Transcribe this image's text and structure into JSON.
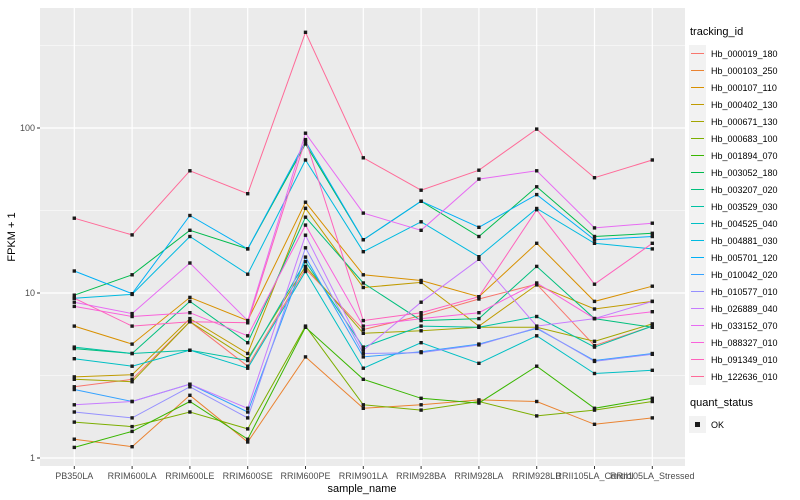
{
  "figure": {
    "xlabel": "sample_name",
    "ylabel": "FPKM + 1"
  },
  "legend": {
    "tracking_title": "tracking_id",
    "quant_title": "quant_status",
    "quant_status_label": "OK",
    "quant_marker_color": "#1a1a1a"
  },
  "chart_data": {
    "type": "line",
    "title": "",
    "xlabel": "sample_name",
    "ylabel": "FPKM + 1",
    "y_scale": "log10",
    "y_ticks": [
      1,
      10,
      100
    ],
    "ylim": [
      1,
      500
    ],
    "grid": "on",
    "legend_position": "right",
    "point_marker": "filled-square-black",
    "categories": [
      "PB350LA",
      "RRIM600LA",
      "RRIM600LE",
      "RRIM600SE",
      "RRIM600PE",
      "RRIM901LA",
      "RRIM928BA",
      "RRIM928LA",
      "RRIM928LB",
      "RRII105LA_Control",
      "RRII105LA_Stressed"
    ],
    "series": [
      {
        "name": "Hb_000019_180",
        "color": "#F8766D",
        "values": [
          2.7,
          3.0,
          6.7,
          3.6,
          14.0,
          6.0,
          7.3,
          9.2,
          11.3,
          4.8,
          6.3
        ]
      },
      {
        "name": "Hb_000103_250",
        "color": "#EA8331",
        "values": [
          1.3,
          1.17,
          2.4,
          1.25,
          4.1,
          2.0,
          2.1,
          2.25,
          2.2,
          1.6,
          1.75
        ]
      },
      {
        "name": "Hb_000107_110",
        "color": "#D89000",
        "values": [
          6.3,
          4.9,
          9.4,
          6.8,
          35.5,
          12.9,
          11.9,
          9.5,
          20.0,
          8.9,
          11.0
        ]
      },
      {
        "name": "Hb_000402_130",
        "color": "#C09B00",
        "values": [
          3.1,
          3.2,
          7.0,
          4.3,
          32.6,
          10.8,
          11.6,
          6.3,
          11.2,
          8.0,
          8.9
        ]
      },
      {
        "name": "Hb_000671_130",
        "color": "#A3A500",
        "values": [
          3.0,
          2.9,
          6.7,
          4.0,
          14.5,
          5.7,
          5.9,
          6.2,
          6.2,
          5.1,
          6.5
        ]
      },
      {
        "name": "Hb_000683_100",
        "color": "#7CAE00",
        "values": [
          1.65,
          1.55,
          1.9,
          1.5,
          6.3,
          2.1,
          1.95,
          2.2,
          1.8,
          1.95,
          2.2
        ]
      },
      {
        "name": "Hb_001894_070",
        "color": "#39B600",
        "values": [
          1.16,
          1.45,
          2.2,
          1.3,
          6.2,
          3.0,
          2.3,
          2.15,
          3.6,
          2.0,
          2.3
        ]
      },
      {
        "name": "Hb_003052_180",
        "color": "#00BB4E",
        "values": [
          9.7,
          12.9,
          24.0,
          18.5,
          80.0,
          21.0,
          36.0,
          22.0,
          44.0,
          22.0,
          23.0
        ]
      },
      {
        "name": "Hb_003207_020",
        "color": "#00BF7D",
        "values": [
          4.6,
          4.3,
          8.9,
          5.0,
          28.8,
          11.5,
          6.8,
          7.0,
          14.5,
          7.0,
          6.2
        ]
      },
      {
        "name": "Hb_003529_030",
        "color": "#00C1A3",
        "values": [
          4.7,
          4.3,
          4.5,
          3.9,
          15.5,
          4.7,
          6.3,
          6.2,
          7.2,
          4.7,
          6.3
        ]
      },
      {
        "name": "Hb_004525_040",
        "color": "#00BFC4",
        "values": [
          4.0,
          3.6,
          4.5,
          3.5,
          13.5,
          3.5,
          5.0,
          3.75,
          5.5,
          3.25,
          3.4
        ]
      },
      {
        "name": "Hb_004881_030",
        "color": "#00BAE0",
        "values": [
          9.3,
          9.8,
          22.0,
          13.0,
          64.0,
          17.8,
          27.0,
          16.6,
          32.5,
          20.0,
          18.5
        ]
      },
      {
        "name": "Hb_005701_120",
        "color": "#00B0F6",
        "values": [
          13.6,
          9.9,
          29.5,
          18.5,
          83.0,
          21.0,
          36.0,
          25.0,
          39.5,
          21.0,
          22.0
        ]
      },
      {
        "name": "Hb_010042_020",
        "color": "#35A2FF",
        "values": [
          2.6,
          2.2,
          2.8,
          1.9,
          16.5,
          4.1,
          4.4,
          4.9,
          6.1,
          3.9,
          4.3
        ]
      },
      {
        "name": "Hb_010577_010",
        "color": "#9590FF",
        "values": [
          1.9,
          1.75,
          2.7,
          1.75,
          18.8,
          4.3,
          4.35,
          4.85,
          6.15,
          3.85,
          4.25
        ]
      },
      {
        "name": "Hb_026889_040",
        "color": "#C77CFF",
        "values": [
          2.1,
          2.2,
          2.8,
          2.0,
          22.4,
          4.5,
          8.8,
          16.0,
          6.3,
          7.0,
          8.9
        ]
      },
      {
        "name": "Hb_033152_070",
        "color": "#E76BF3",
        "values": [
          8.8,
          7.5,
          15.2,
          6.8,
          93.0,
          30.5,
          24.0,
          49.0,
          55.0,
          24.8,
          26.5
        ]
      },
      {
        "name": "Hb_088327_010",
        "color": "#FA62DB",
        "values": [
          8.3,
          7.2,
          7.6,
          5.5,
          25.8,
          6.3,
          7.0,
          7.6,
          11.5,
          7.0,
          7.7
        ]
      },
      {
        "name": "Hb_091349_010",
        "color": "#FF62BC",
        "values": [
          9.3,
          6.3,
          6.7,
          6.6,
          85.0,
          6.8,
          7.6,
          9.5,
          32.0,
          11.3,
          20.0
        ]
      },
      {
        "name": "Hb_122636_010",
        "color": "#FF6A98",
        "values": [
          28.4,
          22.5,
          55.0,
          40.0,
          380.0,
          66.0,
          42.0,
          55.5,
          98.5,
          50.0,
          64.0
        ]
      }
    ],
    "layout": {
      "panel_bg": "#EBEBEB",
      "grid_color": "#FFFFFF",
      "tick_label_color": "#4D4D4D",
      "axis_title_color": "#000000",
      "point_color": "#1a1a1a"
    }
  }
}
